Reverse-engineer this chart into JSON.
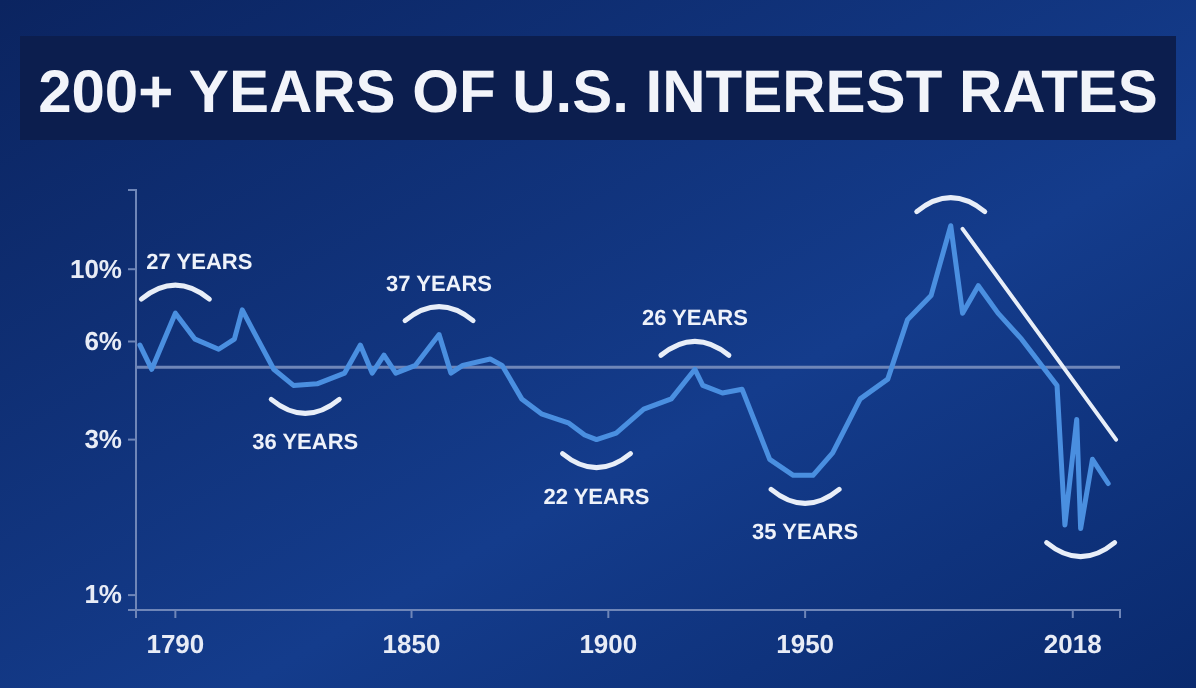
{
  "chart_data": {
    "type": "line",
    "title": "200+ YEARS OF U.S. INTEREST RATES",
    "log": "y",
    "xlim": [
      1780,
      2030
    ],
    "ylim": [
      0.9,
      17.5
    ],
    "xticks": [
      1790,
      1850,
      1900,
      1950,
      2018
    ],
    "yticks": [
      {
        "value": 1,
        "label": "1%"
      },
      {
        "value": 3,
        "label": "3%"
      },
      {
        "value": 6,
        "label": "6%"
      },
      {
        "value": 10,
        "label": "10%"
      }
    ],
    "series": [
      {
        "color": "#4a8fe0",
        "x": [
          1781,
          1784,
          1790,
          1795,
          1801,
          1805,
          1807,
          1810,
          1815,
          1820,
          1826,
          1833,
          1837,
          1840,
          1843,
          1846,
          1851,
          1857,
          1860,
          1863,
          1870,
          1873,
          1878,
          1883,
          1890,
          1894,
          1897,
          1902,
          1909,
          1916,
          1922,
          1924,
          1929,
          1934,
          1937,
          1941,
          1947,
          1952,
          1957,
          1964,
          1971,
          1976,
          1982,
          1987,
          1990,
          1994,
          1999,
          2005,
          2014,
          2016,
          2019,
          2020,
          2023,
          2027
        ],
        "values": [
          5.85,
          4.93,
          7.33,
          6.1,
          5.68,
          6.1,
          7.5,
          6.4,
          4.93,
          4.4,
          4.45,
          4.8,
          5.85,
          4.8,
          5.45,
          4.8,
          5.07,
          6.3,
          4.8,
          5.07,
          5.3,
          5.07,
          4.0,
          3.6,
          3.37,
          3.1,
          3.0,
          3.14,
          3.72,
          4.0,
          4.93,
          4.4,
          4.17,
          4.28,
          3.46,
          2.61,
          2.33,
          2.33,
          2.73,
          4.0,
          4.6,
          7.0,
          8.3,
          13.6,
          7.33,
          8.9,
          7.33,
          6.1,
          4.4,
          1.64,
          3.46,
          1.6,
          2.61,
          2.2
        ]
      },
      {
        "type": "line",
        "color": "#e8eef8",
        "x": [
          1990,
          2029
        ],
        "values": [
          13.3,
          3.0
        ]
      }
    ],
    "ref_lines": [
      {
        "axis": "y",
        "value": 5,
        "color": "#6f86b8"
      }
    ],
    "annotations": [
      {
        "text": "27 YEARS",
        "x": 1790,
        "y": 7.33
      },
      {
        "text": "36 YEARS",
        "x": 1823,
        "y": 4.4
      },
      {
        "text": "37 YEARS",
        "x": 1857,
        "y": 6.3
      },
      {
        "text": "22 YEARS",
        "x": 1897,
        "y": 3.0
      },
      {
        "text": "26 YEARS",
        "x": 1922,
        "y": 4.93
      },
      {
        "text": "35 YEARS",
        "x": 1950,
        "y": 2.33
      }
    ]
  }
}
